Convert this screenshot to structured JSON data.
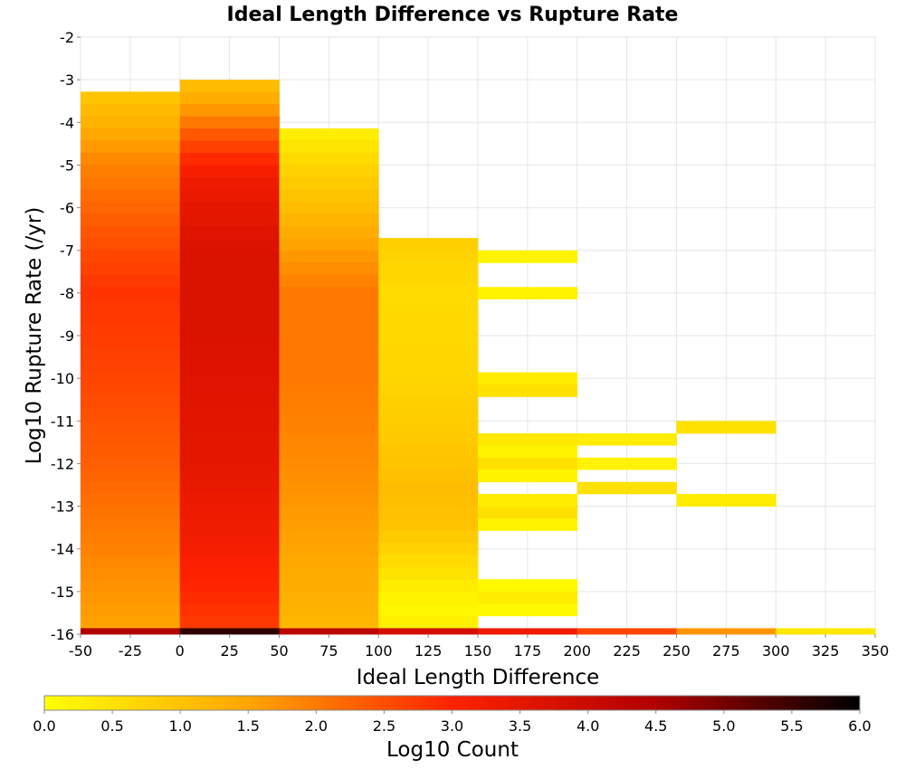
{
  "chart_data": {
    "type": "heatmap",
    "title": "Ideal Length Difference vs Rupture Rate",
    "xlabel": "Ideal Length Difference",
    "ylabel": "Log10 Rupture Rate (/yr)",
    "xlim": [
      -50,
      350
    ],
    "ylim": [
      -16,
      -2
    ],
    "x_ticks": [
      -50,
      -25,
      0,
      25,
      50,
      75,
      100,
      125,
      150,
      175,
      200,
      225,
      250,
      275,
      300,
      325,
      350
    ],
    "y_ticks": [
      -2,
      -3,
      -4,
      -5,
      -6,
      -7,
      -8,
      -9,
      -10,
      -11,
      -12,
      -13,
      -14,
      -15,
      -16
    ],
    "grid": true,
    "x_bin_width": 50,
    "y_bin_height": 0.286,
    "colorbar": {
      "label": "Log10 Count",
      "range": [
        0.0,
        6.0
      ],
      "ticks": [
        "0.0",
        "0.5",
        "1.0",
        "1.5",
        "2.0",
        "2.5",
        "3.0",
        "3.5",
        "4.0",
        "4.5",
        "5.0",
        "5.5",
        "6.0"
      ],
      "placement": "bottom",
      "colors": [
        "#ffff00",
        "#ffa500",
        "#ff2200",
        "#b00000",
        "#000000"
      ]
    },
    "columns": [
      {
        "x": -50,
        "y_top": -3.28,
        "y_bottom": -15.86,
        "z_top": 0.9,
        "z_bottom": 1.5,
        "profile": [
          [
            -3.3,
            0.9
          ],
          [
            -4.2,
            1.4
          ],
          [
            -5.0,
            1.9
          ],
          [
            -6.5,
            2.4
          ],
          [
            -8.0,
            2.8
          ],
          [
            -10.0,
            2.6
          ],
          [
            -12.0,
            2.3
          ],
          [
            -14.0,
            1.9
          ],
          [
            -15.86,
            1.5
          ]
        ]
      },
      {
        "x": 0,
        "y_top": -3.0,
        "y_bottom": -15.86,
        "z_top": 1.0,
        "z_bottom": 2.7,
        "profile": [
          [
            -3.0,
            1.0
          ],
          [
            -3.6,
            1.5
          ],
          [
            -4.3,
            2.4
          ],
          [
            -5.3,
            3.3
          ],
          [
            -7.0,
            3.7
          ],
          [
            -9.0,
            3.7
          ],
          [
            -12.0,
            3.5
          ],
          [
            -14.0,
            3.2
          ],
          [
            -15.86,
            2.7
          ]
        ]
      },
      {
        "x": 50,
        "y_top": -4.14,
        "y_bottom": -15.86,
        "z_top": 0.2,
        "z_bottom": 1.2,
        "profile": [
          [
            -4.14,
            0.2
          ],
          [
            -5.0,
            0.7
          ],
          [
            -6.0,
            1.1
          ],
          [
            -7.0,
            1.6
          ],
          [
            -8.0,
            2.0
          ],
          [
            -10.0,
            2.0
          ],
          [
            -12.0,
            1.8
          ],
          [
            -14.0,
            1.5
          ],
          [
            -15.86,
            1.2
          ]
        ]
      },
      {
        "x": 100,
        "y_top": -6.71,
        "y_bottom": -15.86,
        "z_top": 0.8,
        "z_bottom": 0.3,
        "profile": [
          [
            -6.71,
            0.8
          ],
          [
            -8.0,
            0.6
          ],
          [
            -10.0,
            0.7
          ],
          [
            -11.5,
            0.9
          ],
          [
            -12.5,
            1.1
          ],
          [
            -13.5,
            1.0
          ],
          [
            -14.5,
            0.5
          ],
          [
            -15.3,
            0.1
          ],
          [
            -15.86,
            0.3
          ]
        ]
      }
    ],
    "sparse_bins": [
      {
        "x": 150,
        "y_top": -7.0,
        "y_bottom": -7.29,
        "z": 0.2
      },
      {
        "x": 150,
        "y_top": -7.86,
        "y_bottom": -8.14,
        "z": 0.2
      },
      {
        "x": 150,
        "y_top": -9.86,
        "y_bottom": -10.14,
        "z": 0.3
      },
      {
        "x": 150,
        "y_top": -10.14,
        "y_bottom": -10.43,
        "z": 0.5
      },
      {
        "x": 150,
        "y_top": -11.29,
        "y_bottom": -11.57,
        "z": 0.4
      },
      {
        "x": 150,
        "y_top": -11.57,
        "y_bottom": -11.86,
        "z": 0.2
      },
      {
        "x": 150,
        "y_top": -11.86,
        "y_bottom": -12.14,
        "z": 0.5
      },
      {
        "x": 150,
        "y_top": -12.14,
        "y_bottom": -12.43,
        "z": 0.2
      },
      {
        "x": 150,
        "y_top": -12.71,
        "y_bottom": -13.0,
        "z": 0.3
      },
      {
        "x": 150,
        "y_top": -13.0,
        "y_bottom": -13.29,
        "z": 0.5
      },
      {
        "x": 150,
        "y_top": -13.29,
        "y_bottom": -13.57,
        "z": 0.2
      },
      {
        "x": 150,
        "y_top": -14.71,
        "y_bottom": -15.0,
        "z": 0.1
      },
      {
        "x": 150,
        "y_top": -15.0,
        "y_bottom": -15.29,
        "z": 0.3
      },
      {
        "x": 150,
        "y_top": -15.29,
        "y_bottom": -15.57,
        "z": 0.1
      },
      {
        "x": 200,
        "y_top": -11.29,
        "y_bottom": -11.57,
        "z": 0.3
      },
      {
        "x": 200,
        "y_top": -11.86,
        "y_bottom": -12.14,
        "z": 0.2
      },
      {
        "x": 200,
        "y_top": -12.43,
        "y_bottom": -12.71,
        "z": 0.5
      },
      {
        "x": 250,
        "y_top": -11.0,
        "y_bottom": -11.29,
        "z": 0.5
      },
      {
        "x": 250,
        "y_top": -12.71,
        "y_bottom": -13.0,
        "z": 0.3
      }
    ],
    "bottom_row": {
      "y_top": -15.86,
      "y_bottom": -16.0,
      "values": [
        {
          "x": -50,
          "z": 4.5
        },
        {
          "x": 0,
          "z": 5.6
        },
        {
          "x": 50,
          "z": 4.3
        },
        {
          "x": 100,
          "z": 3.8
        },
        {
          "x": 150,
          "z": 3.3
        },
        {
          "x": 200,
          "z": 2.6
        },
        {
          "x": 250,
          "z": 1.7
        },
        {
          "x": 300,
          "z": 0.4
        }
      ]
    }
  }
}
